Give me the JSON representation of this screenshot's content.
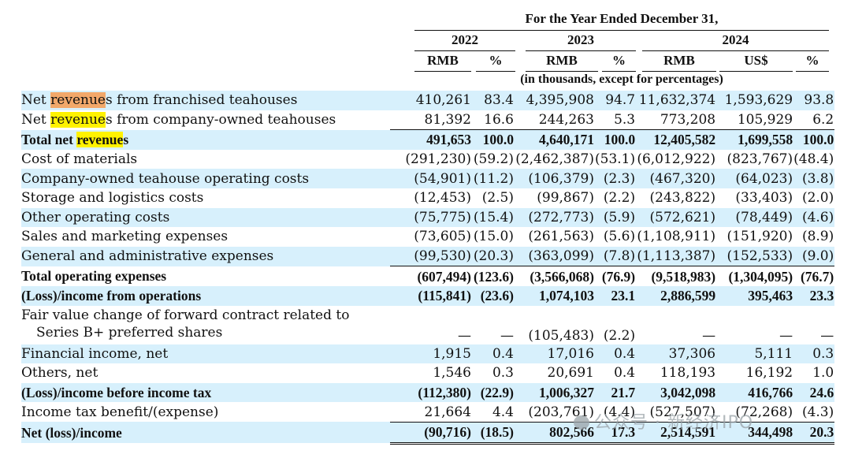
{
  "header": {
    "title": "For the Year Ended December 31,",
    "years": [
      "2022",
      "2023",
      "2024"
    ],
    "columns": [
      "RMB",
      "%",
      "RMB",
      "%",
      "RMB",
      "US$",
      "%"
    ],
    "note": "(in thousands, except for percentages)"
  },
  "rows": [
    {
      "label_pre": "Net ",
      "label_hl": "revenue",
      "label_post": "s from franchised teahouses",
      "hl": "orange",
      "values": [
        "410,261",
        "83.4",
        "4,395,908",
        "94.7",
        "11,632,374",
        "1,593,629",
        "93.8"
      ]
    },
    {
      "label_pre": "Net ",
      "label_hl": "revenue",
      "label_post": "s from company-owned teahouses",
      "hl": "yellow",
      "values": [
        "81,392",
        "16.6",
        "244,263",
        "5.3",
        "773,208",
        "105,929",
        "6.2"
      ]
    },
    {
      "label_pre": "Total net ",
      "label_hl": "revenue",
      "label_post": "s",
      "hl": "yellow",
      "values": [
        "491,653",
        "100.0",
        "4,640,171",
        "100.0",
        "12,405,582",
        "1,699,558",
        "100.0"
      ]
    },
    {
      "label": "Cost of materials",
      "values": [
        "(291,230)",
        "(59.2)",
        "(2,462,387)",
        "(53.1)",
        "(6,012,922)",
        "(823,767)",
        "(48.4)"
      ]
    },
    {
      "label": "Company-owned teahouse operating costs",
      "values": [
        "(54,901)",
        "(11.2)",
        "(106,379)",
        "(2.3)",
        "(467,320)",
        "(64,023)",
        "(3.8)"
      ]
    },
    {
      "label": "Storage and logistics costs",
      "values": [
        "(12,453)",
        "(2.5)",
        "(99,867)",
        "(2.2)",
        "(243,822)",
        "(33,403)",
        "(2.0)"
      ]
    },
    {
      "label": "Other operating costs",
      "values": [
        "(75,775)",
        "(15.4)",
        "(272,773)",
        "(5.9)",
        "(572,621)",
        "(78,449)",
        "(4.6)"
      ]
    },
    {
      "label": "Sales and marketing expenses",
      "values": [
        "(73,605)",
        "(15.0)",
        "(261,563)",
        "(5.6)",
        "(1,108,911)",
        "(151,920)",
        "(8.9)"
      ]
    },
    {
      "label": "General and administrative expenses",
      "values": [
        "(99,530)",
        "(20.3)",
        "(363,099)",
        "(7.8)",
        "(1,113,387)",
        "(152,533)",
        "(9.0)"
      ]
    },
    {
      "label": "Total operating expenses",
      "values": [
        "(607,494)",
        "(123.6)",
        "(3,566,068)",
        "(76.9)",
        "(9,518,983)",
        "(1,304,095)",
        "(76.7)"
      ]
    },
    {
      "label": "(Loss)/income from operations",
      "values": [
        "(115,841)",
        "(23.6)",
        "1,074,103",
        "23.1",
        "2,886,599",
        "395,463",
        "23.3"
      ]
    },
    {
      "label": "Fair value change of forward contract related to Series B+ preferred shares",
      "values": [
        "—",
        "—",
        "(105,483)",
        "(2.2)",
        "—",
        "—",
        "—"
      ]
    },
    {
      "label": "Financial income, net",
      "values": [
        "1,915",
        "0.4",
        "17,016",
        "0.4",
        "37,306",
        "5,111",
        "0.3"
      ]
    },
    {
      "label": "Others, net",
      "values": [
        "1,546",
        "0.3",
        "20,691",
        "0.4",
        "118,193",
        "16,192",
        "1.0"
      ]
    },
    {
      "label": "(Loss)/income before income tax",
      "values": [
        "(112,380)",
        "(22.9)",
        "1,006,327",
        "21.7",
        "3,042,098",
        "416,766",
        "24.6"
      ]
    },
    {
      "label": "Income tax benefit/(expense)",
      "values": [
        "21,664",
        "4.4",
        "(203,761)",
        "(4.4)",
        "(527,507)",
        "(72,268)",
        "(4.3)"
      ]
    },
    {
      "label": "Net (loss)/income",
      "values": [
        "(90,716)",
        "(18.5)",
        "802,566",
        "17.3",
        "2,514,591",
        "344,498",
        "20.3"
      ]
    }
  ],
  "watermark": "公众号 · 新经济IPO"
}
